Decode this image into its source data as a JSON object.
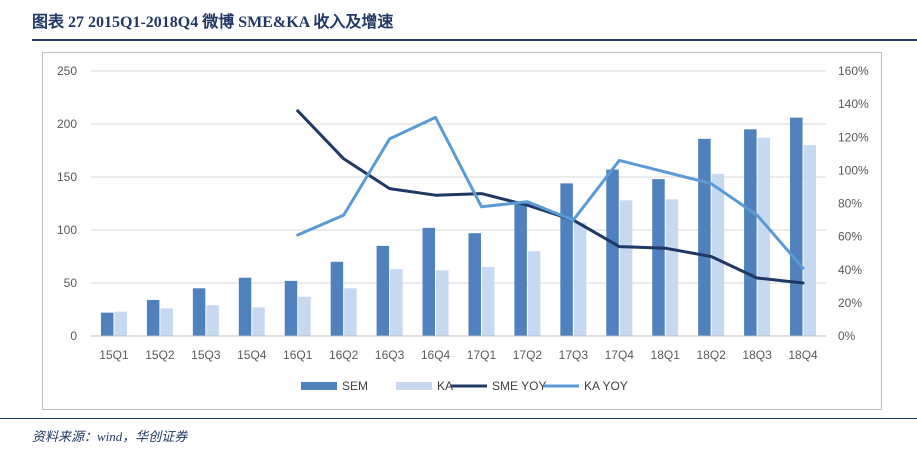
{
  "title": "图表 27   2015Q1-2018Q4 微博 SME&KA 收入及增速",
  "source": "资料来源：wind，华创证券",
  "colors": {
    "title": "#1f3864",
    "sem_bar": "#4f81bd",
    "ka_bar": "#c6d9f1",
    "sme_yoy_line": "#1f3864",
    "ka_yoy_line": "#5b9bd5"
  },
  "chart_data": {
    "type": "bar",
    "categories": [
      "15Q1",
      "15Q2",
      "15Q3",
      "15Q4",
      "16Q1",
      "16Q2",
      "16Q3",
      "16Q4",
      "17Q1",
      "17Q2",
      "17Q3",
      "17Q4",
      "18Q1",
      "18Q2",
      "18Q3",
      "18Q4"
    ],
    "series": [
      {
        "name": "SEM",
        "type": "bar",
        "axis": "left",
        "values": [
          22,
          34,
          45,
          55,
          52,
          70,
          85,
          102,
          97,
          125,
          144,
          157,
          148,
          186,
          195,
          206
        ]
      },
      {
        "name": "KA",
        "type": "bar",
        "axis": "left",
        "values": [
          23,
          26,
          29,
          27,
          37,
          45,
          63,
          62,
          65,
          80,
          107,
          128,
          129,
          153,
          187,
          180
        ]
      },
      {
        "name": "SME YOY",
        "type": "line",
        "axis": "right",
        "values": [
          null,
          null,
          null,
          null,
          1.36,
          1.07,
          0.89,
          0.85,
          0.86,
          0.79,
          0.7,
          0.54,
          0.53,
          0.48,
          0.35,
          0.32
        ]
      },
      {
        "name": "KA YOY",
        "type": "line",
        "axis": "right",
        "values": [
          null,
          null,
          null,
          null,
          0.61,
          0.73,
          1.19,
          1.32,
          0.78,
          0.81,
          0.7,
          1.06,
          0.99,
          0.92,
          0.73,
          0.41
        ]
      }
    ],
    "y_left": {
      "min": 0,
      "max": 250,
      "ticks": [
        "0",
        "50",
        "100",
        "150",
        "200",
        "250"
      ]
    },
    "y_right": {
      "min": 0,
      "max": 1.6,
      "ticks": [
        "0%",
        "20%",
        "40%",
        "60%",
        "80%",
        "100%",
        "120%",
        "140%",
        "160%"
      ]
    },
    "legend_position": "bottom",
    "grid": true
  }
}
